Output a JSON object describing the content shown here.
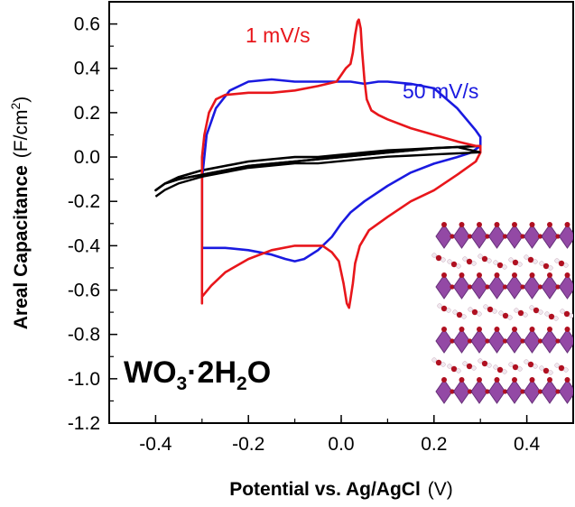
{
  "chart_data": {
    "type": "line",
    "xlabel": {
      "main": "Potential vs. Ag/AgCl",
      "unit": "(V)"
    },
    "ylabel": {
      "main": "Areal Capacitance",
      "unit_open": "(F/cm",
      "unit_sup": "2",
      "unit_close": ")"
    },
    "xlim": [
      -0.5,
      0.5
    ],
    "ylim": [
      -1.2,
      0.7
    ],
    "xticks": [
      -0.4,
      -0.2,
      0.0,
      0.2,
      0.4
    ],
    "xtick_labels": [
      "-0.4",
      "-0.2",
      "0.0",
      "0.2",
      "0.4"
    ],
    "yticks": [
      -1.2,
      -1.0,
      -0.8,
      -0.6,
      -0.4,
      -0.2,
      0.0,
      0.2,
      0.4,
      0.6
    ],
    "ytick_labels": [
      "-1.2",
      "-1.0",
      "-0.8",
      "-0.6",
      "-0.4",
      "-0.2",
      "0.0",
      "0.2",
      "0.4",
      "0.6"
    ],
    "grid": false,
    "annotation": {
      "base": "WO",
      "sub1": "3",
      "mid": "·2H",
      "sub2": "2",
      "end": "O"
    },
    "series": [
      {
        "name": "1 mV/s",
        "color": "#e8161b",
        "x": [
          -0.3,
          -0.3,
          -0.295,
          -0.285,
          -0.27,
          -0.25,
          -0.2,
          -0.15,
          -0.1,
          -0.05,
          -0.01,
          0.0,
          0.01,
          0.02,
          0.025,
          0.03,
          0.035,
          0.038,
          0.042,
          0.045,
          0.05,
          0.055,
          0.065,
          0.08,
          0.1,
          0.15,
          0.2,
          0.25,
          0.29,
          0.3,
          0.3,
          0.3,
          0.3,
          0.29,
          0.25,
          0.2,
          0.15,
          0.1,
          0.06,
          0.04,
          0.03,
          0.025,
          0.02,
          0.017,
          0.012,
          0.005,
          -0.005,
          -0.02,
          -0.04,
          -0.07,
          -0.1,
          -0.15,
          -0.2,
          -0.25,
          -0.28,
          -0.3,
          -0.3
        ],
        "y": [
          -0.66,
          0.0,
          0.1,
          0.2,
          0.26,
          0.28,
          0.29,
          0.29,
          0.3,
          0.32,
          0.34,
          0.37,
          0.4,
          0.42,
          0.47,
          0.55,
          0.61,
          0.62,
          0.58,
          0.48,
          0.35,
          0.26,
          0.21,
          0.19,
          0.17,
          0.13,
          0.1,
          0.07,
          0.05,
          0.05,
          0.04,
          0.03,
          0.02,
          -0.02,
          -0.08,
          -0.15,
          -0.2,
          -0.27,
          -0.33,
          -0.4,
          -0.48,
          -0.57,
          -0.64,
          -0.68,
          -0.66,
          -0.57,
          -0.47,
          -0.43,
          -0.4,
          -0.4,
          -0.4,
          -0.42,
          -0.46,
          -0.52,
          -0.58,
          -0.63,
          -0.66
        ]
      },
      {
        "name": "50 mV/s",
        "color": "#1a1ae0",
        "x": [
          -0.3,
          -0.25,
          -0.2,
          -0.15,
          -0.12,
          -0.1,
          -0.08,
          -0.05,
          -0.02,
          0.0,
          0.02,
          0.05,
          0.1,
          0.15,
          0.2,
          0.25,
          0.28,
          0.3,
          0.3,
          0.3,
          0.29,
          0.25,
          0.2,
          0.15,
          0.1,
          0.08,
          0.05,
          0.02,
          0.0,
          -0.05,
          -0.1,
          -0.15,
          -0.2,
          -0.24,
          -0.27,
          -0.29,
          -0.3,
          -0.3
        ],
        "y": [
          -0.41,
          -0.41,
          -0.42,
          -0.44,
          -0.46,
          -0.47,
          -0.46,
          -0.42,
          -0.36,
          -0.3,
          -0.25,
          -0.2,
          -0.13,
          -0.07,
          -0.03,
          0.0,
          0.02,
          0.05,
          0.08,
          0.09,
          0.12,
          0.22,
          0.31,
          0.33,
          0.34,
          0.34,
          0.33,
          0.34,
          0.34,
          0.34,
          0.34,
          0.35,
          0.34,
          0.3,
          0.22,
          0.1,
          -0.1,
          -0.41
        ]
      },
      {
        "name": "",
        "color": "#000000",
        "x": [
          -0.4,
          -0.38,
          -0.35,
          -0.3,
          -0.25,
          -0.2,
          -0.15,
          -0.1,
          -0.05,
          0.0,
          0.05,
          0.1,
          0.15,
          0.2,
          0.25,
          0.3,
          0.25,
          0.2,
          0.15,
          0.1,
          0.05,
          0.0,
          -0.05,
          -0.1,
          -0.15,
          -0.2,
          -0.25,
          -0.3,
          -0.35,
          -0.38,
          -0.4
        ],
        "y": [
          -0.15,
          -0.12,
          -0.09,
          -0.06,
          -0.04,
          -0.02,
          -0.01,
          0.0,
          0.0,
          0.01,
          0.02,
          0.03,
          0.035,
          0.04,
          0.045,
          0.05,
          0.045,
          0.04,
          0.03,
          0.02,
          0.01,
          0.0,
          -0.01,
          -0.02,
          -0.03,
          -0.04,
          -0.06,
          -0.08,
          -0.1,
          -0.12,
          -0.15
        ]
      }
    ],
    "label_colors": {
      "red": "#e8161b",
      "blue": "#1a1ae0"
    }
  },
  "inset": {
    "name": "crystal-structure-illustration",
    "octahedron_color": "#8a3a9e",
    "oxygen_color": "#b01020",
    "hydrogen_color": "#f0e8ee"
  }
}
